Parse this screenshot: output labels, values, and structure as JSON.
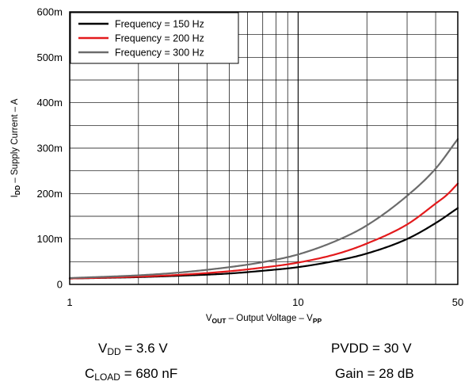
{
  "chart_data": {
    "type": "line",
    "xscale": "log",
    "xlim": [
      1,
      50
    ],
    "ylim": [
      0,
      0.6
    ],
    "xticks": [
      {
        "value": 1,
        "label": "1"
      },
      {
        "value": 10,
        "label": "10"
      },
      {
        "value": 50,
        "label": "50"
      }
    ],
    "yticks": [
      {
        "value": 0,
        "label": "0"
      },
      {
        "value": 0.1,
        "label": "100m"
      },
      {
        "value": 0.2,
        "label": "200m"
      },
      {
        "value": 0.3,
        "label": "300m"
      },
      {
        "value": 0.4,
        "label": "400m"
      },
      {
        "value": 0.5,
        "label": "500m"
      },
      {
        "value": 0.6,
        "label": "600m"
      }
    ],
    "xlabel": {
      "main": "V",
      "sub": "OUT",
      "rest": " – Output Voltage – V",
      "sub2": "PP"
    },
    "ylabel": {
      "main": "I",
      "sub": "DD",
      "rest": " – Supply Current – A"
    },
    "grid": true,
    "legend_position": "top-left",
    "series": [
      {
        "name": "Frequency = 150 Hz",
        "color": "#000000",
        "x": [
          1,
          2,
          3,
          5,
          7,
          10,
          15,
          20,
          30,
          40,
          50
        ],
        "y": [
          0.013,
          0.016,
          0.019,
          0.024,
          0.03,
          0.038,
          0.053,
          0.068,
          0.1,
          0.135,
          0.168
        ]
      },
      {
        "name": "Frequency = 200 Hz",
        "color": "#e31a1c",
        "x": [
          1,
          2,
          3,
          5,
          7,
          10,
          15,
          20,
          30,
          40,
          45,
          50
        ],
        "y": [
          0.013,
          0.017,
          0.021,
          0.029,
          0.037,
          0.048,
          0.068,
          0.09,
          0.132,
          0.178,
          0.198,
          0.222
        ]
      },
      {
        "name": "Frequency = 300 Hz",
        "color": "#6b6b6b",
        "x": [
          1,
          2,
          3,
          5,
          7,
          10,
          15,
          20,
          30,
          40,
          50
        ],
        "y": [
          0.014,
          0.02,
          0.026,
          0.038,
          0.049,
          0.066,
          0.098,
          0.13,
          0.195,
          0.255,
          0.32
        ]
      }
    ]
  },
  "conditions": [
    {
      "main": "V",
      "sub": "DD",
      "rest": " = 3.6 V"
    },
    {
      "main": "PVDD = 30 V",
      "sub": "",
      "rest": ""
    },
    {
      "main": "C",
      "sub": "LOAD",
      "rest": " = 680 nF"
    },
    {
      "main": "Gain = 28 dB",
      "sub": "",
      "rest": ""
    }
  ]
}
